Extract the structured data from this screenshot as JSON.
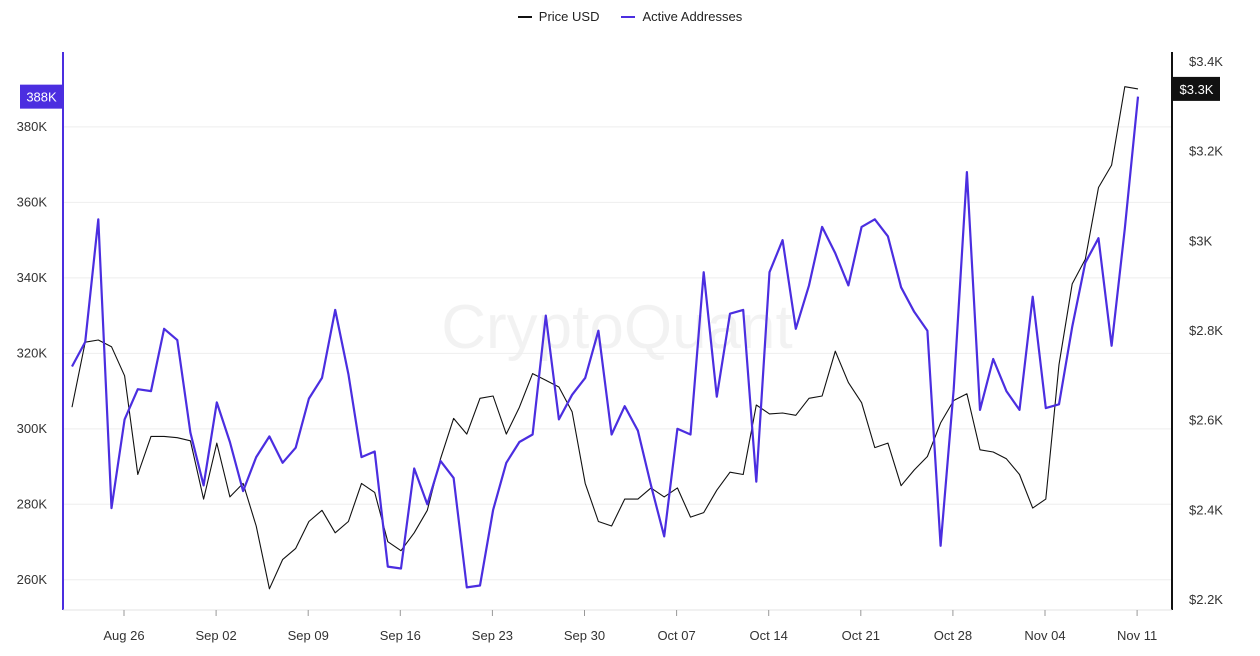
{
  "legend": {
    "items": [
      {
        "label": "Price USD",
        "color": "#111111"
      },
      {
        "label": "Active Addresses",
        "color": "#4b2ee0"
      }
    ]
  },
  "watermark": "CryptoQuant",
  "badges": {
    "left_value": "388K",
    "right_value": "$3.3K",
    "left_color": "#4b2ee0",
    "right_color": "#111111"
  },
  "chart_data": {
    "type": "line",
    "x_ticks": [
      "Aug 26",
      "Sep 02",
      "Sep 09",
      "Sep 16",
      "Sep 23",
      "Sep 30",
      "Oct 07",
      "Oct 14",
      "Oct 21",
      "Oct 28",
      "Nov 04",
      "Nov 11"
    ],
    "y_left": {
      "ticks": [
        "260K",
        "280K",
        "300K",
        "320K",
        "340K",
        "360K",
        "380K"
      ],
      "tick_values": [
        260000,
        280000,
        300000,
        320000,
        340000,
        360000,
        380000
      ],
      "range": [
        252000,
        394000
      ]
    },
    "y_right": {
      "ticks": [
        "$2.2K",
        "$2.4K",
        "$2.6K",
        "$2.8K",
        "$3K",
        "$3.2K",
        "$3.4K"
      ],
      "tick_values": [
        2200,
        2400,
        2600,
        2800,
        3000,
        3200,
        3400
      ],
      "range": [
        2200,
        3400
      ]
    },
    "x_start_day": 0,
    "series": [
      {
        "name": "Price USD",
        "axis": "right",
        "color": "#111111",
        "values": [
          2630,
          2775,
          2780,
          2765,
          2700,
          2480,
          2565,
          2565,
          2562,
          2555,
          2425,
          2550,
          2430,
          2460,
          2365,
          2225,
          2290,
          2315,
          2375,
          2400,
          2350,
          2375,
          2460,
          2440,
          2330,
          2310,
          2350,
          2400,
          2515,
          2605,
          2570,
          2650,
          2655,
          2570,
          2630,
          2705,
          2690,
          2675,
          2620,
          2460,
          2375,
          2365,
          2425,
          2425,
          2450,
          2430,
          2450,
          2385,
          2395,
          2445,
          2485,
          2480,
          2635,
          2615,
          2617,
          2612,
          2650,
          2655,
          2755,
          2685,
          2640,
          2540,
          2550,
          2455,
          2490,
          2520,
          2595,
          2645,
          2660,
          2535,
          2530,
          2515,
          2480,
          2405,
          2425,
          2725,
          2905,
          2960,
          3120,
          3170,
          3345,
          3340
        ]
      },
      {
        "name": "Active Addresses",
        "axis": "left",
        "color": "#4b2ee0",
        "values": [
          316500,
          323000,
          355500,
          279000,
          302500,
          310500,
          310000,
          326500,
          323500,
          299000,
          285000,
          307000,
          296500,
          283500,
          292500,
          298000,
          291000,
          295000,
          308000,
          313500,
          331500,
          314500,
          292500,
          294000,
          263500,
          263000,
          289500,
          280000,
          291500,
          287000,
          258000,
          258500,
          278500,
          291000,
          296500,
          298500,
          330000,
          302500,
          309000,
          313500,
          326000,
          298500,
          306000,
          299500,
          285000,
          271500,
          300000,
          298500,
          341500,
          308500,
          330500,
          331500,
          286000,
          341500,
          350000,
          326500,
          338000,
          353500,
          346500,
          338000,
          353500,
          355500,
          351000,
          337500,
          331000,
          326000,
          269000,
          310500,
          368000,
          305000,
          318500,
          310000,
          305000,
          335000,
          305500,
          306500,
          327000,
          344000,
          350500,
          322000,
          353000,
          388000
        ]
      }
    ]
  }
}
